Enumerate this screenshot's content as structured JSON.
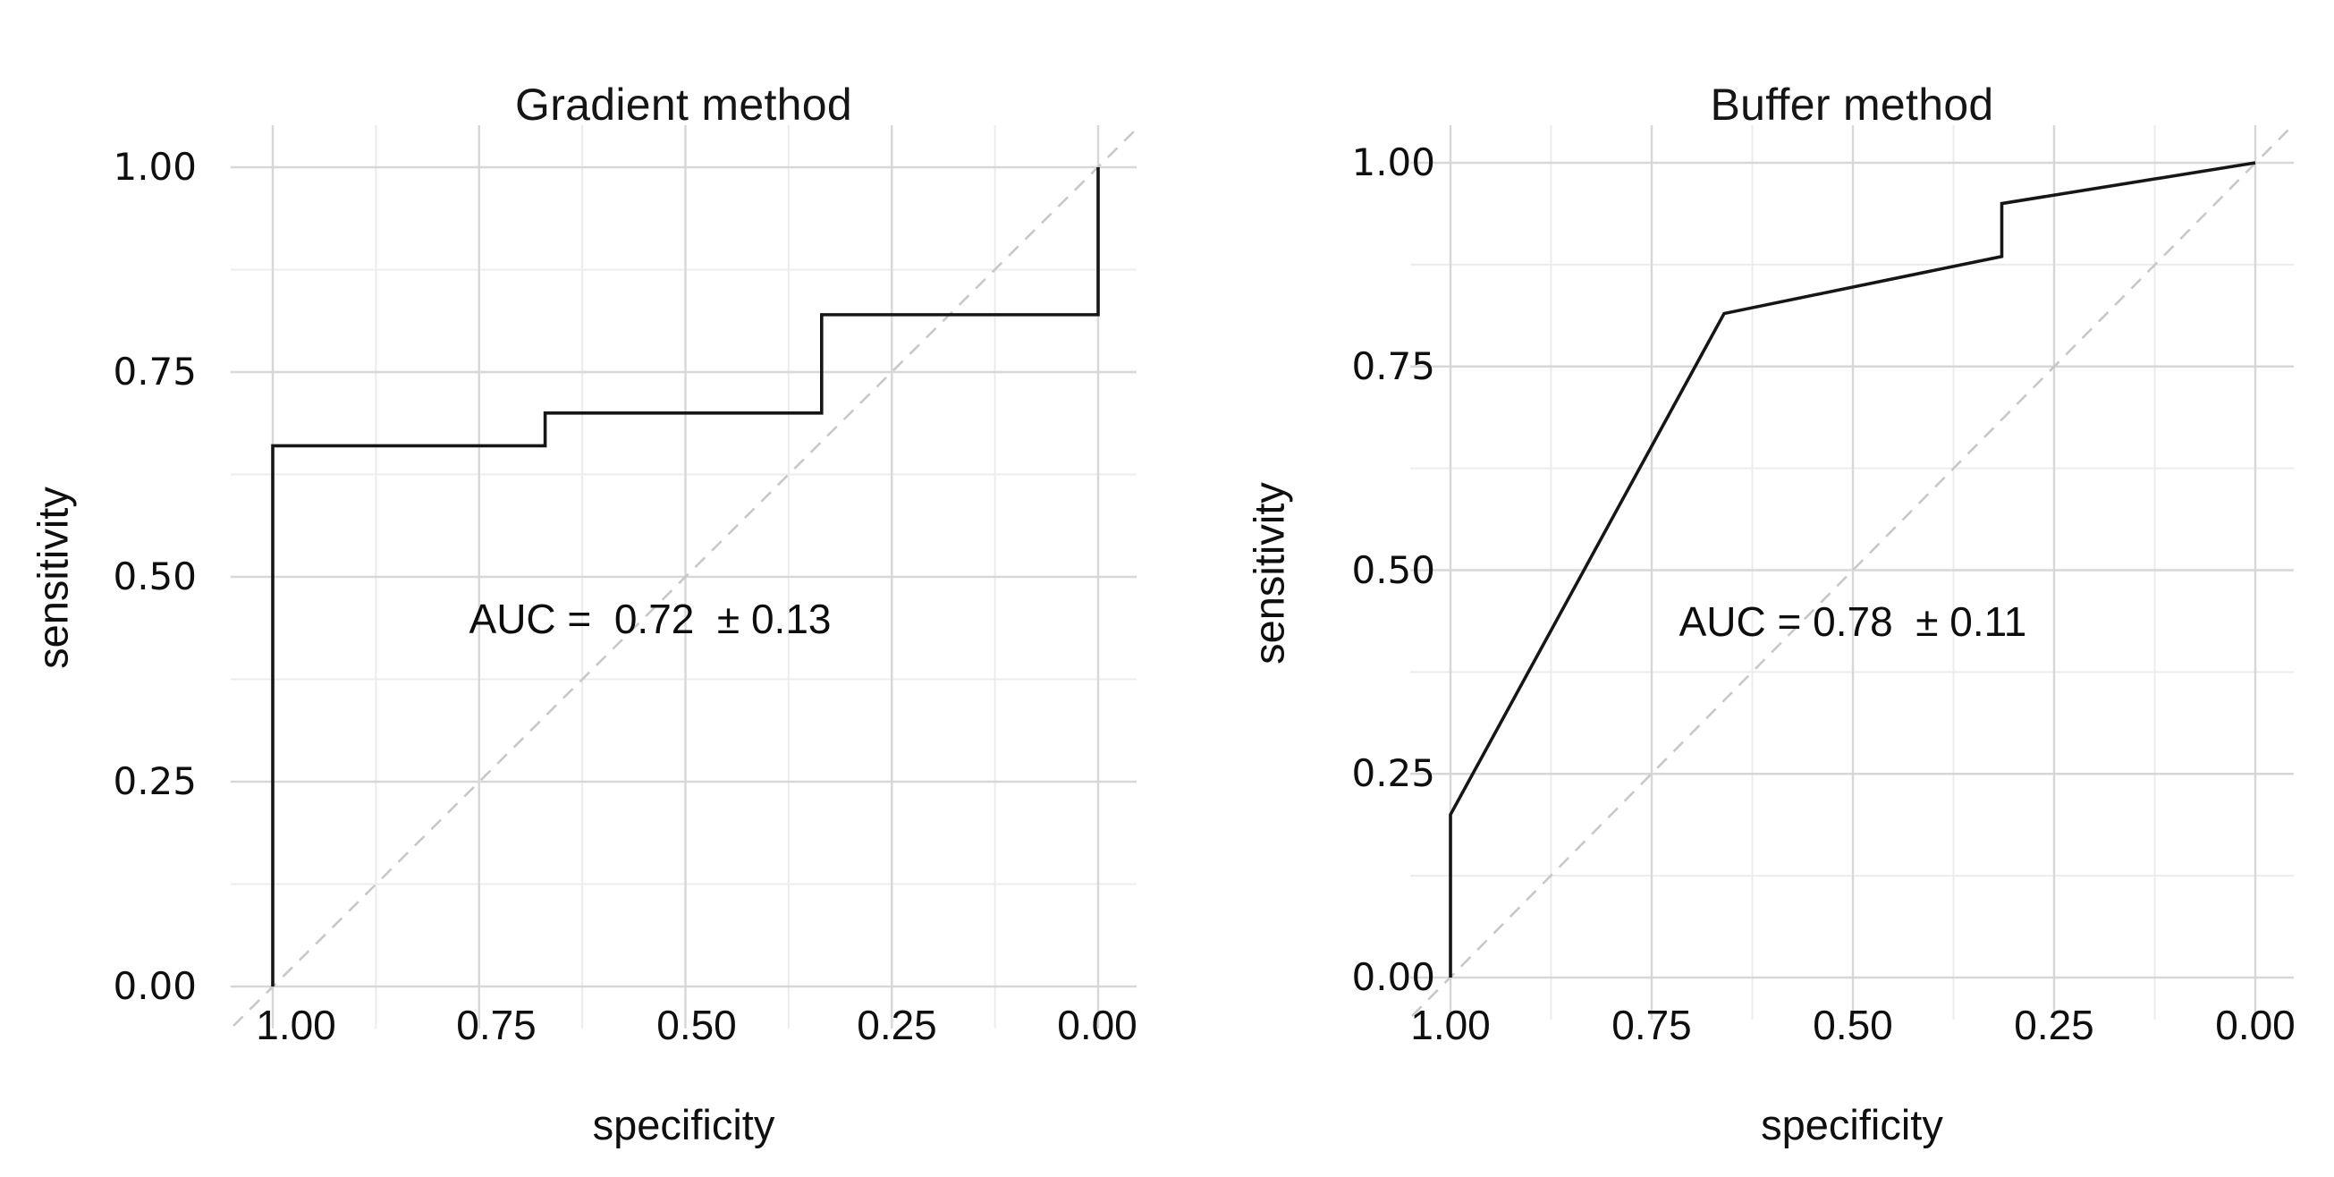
{
  "figure": {
    "background": "#ffffff",
    "curve_color": "#161616",
    "diagonal_color": "#c8c8c8",
    "grid_major_color": "#d7d7d7",
    "grid_minor_color": "#ececec",
    "text_color": "#121212"
  },
  "chart_data": [
    {
      "type": "line",
      "title": "Gradient method",
      "xlabel": "specificity",
      "ylabel": "sensitivity",
      "x_ticks": [
        "1.00",
        "0.75",
        "0.50",
        "0.25",
        "0.00"
      ],
      "x_tick_values": [
        1.0,
        0.75,
        0.5,
        0.25,
        0.0
      ],
      "y_ticks": [
        "1.00",
        "0.75",
        "0.50",
        "0.25",
        "0.00"
      ],
      "y_tick_values": [
        1.0,
        0.75,
        0.5,
        0.25,
        0.0
      ],
      "minor_tick_values": [
        0.875,
        0.625,
        0.375,
        0.125
      ],
      "xlim": [
        1.0,
        0.0
      ],
      "ylim": [
        0.0,
        1.0
      ],
      "grid": "major+minor",
      "legend": "none",
      "diagonal_reference": true,
      "annotation": "AUC =  0.72  ± 0.13",
      "auc": 0.72,
      "auc_sd": 0.13,
      "series": [
        {
          "name": "ROC curve",
          "points": [
            [
              1.0,
              0.0
            ],
            [
              1.0,
              0.66
            ],
            [
              0.67,
              0.66
            ],
            [
              0.67,
              0.7
            ],
            [
              0.335,
              0.7
            ],
            [
              0.335,
              0.82
            ],
            [
              0.0,
              0.82
            ],
            [
              0.0,
              1.0
            ]
          ]
        }
      ]
    },
    {
      "type": "line",
      "title": "Buffer method",
      "xlabel": "specificity",
      "ylabel": "sensitivity",
      "x_ticks": [
        "1.00",
        "0.75",
        "0.50",
        "0.25",
        "0.00"
      ],
      "x_tick_values": [
        1.0,
        0.75,
        0.5,
        0.25,
        0.0
      ],
      "y_ticks": [
        "1.00",
        "0.75",
        "0.50",
        "0.25",
        "0.00"
      ],
      "y_tick_values": [
        1.0,
        0.75,
        0.5,
        0.25,
        0.0
      ],
      "minor_tick_values": [
        0.875,
        0.625,
        0.375,
        0.125
      ],
      "xlim": [
        1.0,
        0.0
      ],
      "ylim": [
        0.0,
        1.0
      ],
      "grid": "major+minor",
      "legend": "none",
      "diagonal_reference": true,
      "annotation": "AUC = 0.78  ± 0.11",
      "auc": 0.78,
      "auc_sd": 0.11,
      "series": [
        {
          "name": "ROC curve",
          "points": [
            [
              1.0,
              0.0
            ],
            [
              1.0,
              0.2
            ],
            [
              0.66,
              0.815
            ],
            [
              0.315,
              0.885
            ],
            [
              0.315,
              0.95
            ],
            [
              0.0,
              1.0
            ]
          ]
        }
      ]
    }
  ]
}
